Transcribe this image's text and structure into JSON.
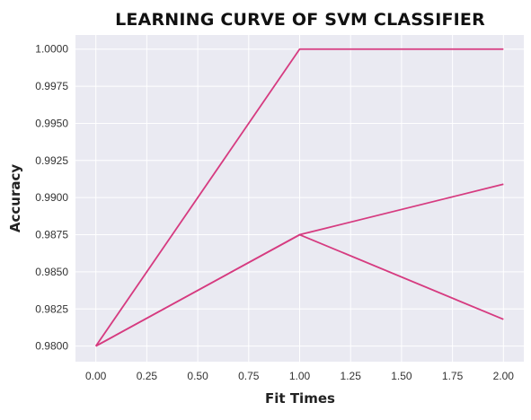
{
  "chart_data": {
    "type": "line",
    "title": "LEARNING CURVE OF SVM CLASSIFIER",
    "xlabel": "Fit Times",
    "ylabel": "Accuracy",
    "xlim": [
      -0.1,
      2.1
    ],
    "ylim": [
      0.97895,
      1.00095
    ],
    "x_ticks": [
      "0.00",
      "0.25",
      "0.50",
      "0.75",
      "1.00",
      "1.25",
      "1.50",
      "1.75",
      "2.00"
    ],
    "y_ticks": [
      "0.9800",
      "0.9825",
      "0.9850",
      "0.9875",
      "0.9900",
      "0.9925",
      "0.9950",
      "0.9975",
      "1.0000"
    ],
    "grid": true,
    "colors": {
      "line": "#d63b80",
      "plot_bg": "#eaeaf2",
      "grid": "#ffffff"
    },
    "series": [
      {
        "x": [
          0,
          1,
          2
        ],
        "values": [
          0.98,
          1.0,
          1.0
        ]
      },
      {
        "x": [
          0,
          1,
          2
        ],
        "values": [
          0.98,
          0.9875,
          0.9909
        ]
      },
      {
        "x": [
          0,
          1,
          2
        ],
        "values": [
          0.98,
          0.9875,
          0.9818
        ]
      }
    ]
  }
}
